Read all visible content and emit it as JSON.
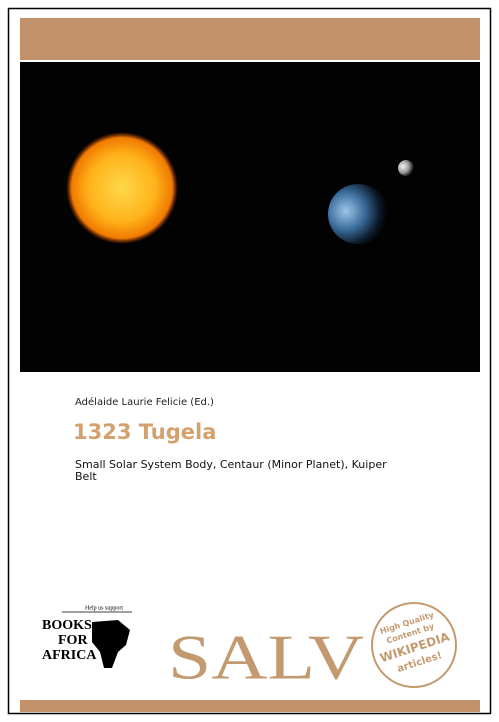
{
  "cover": {
    "author": "Adélaide Laurie Felicie (Ed.)",
    "title": "1323 Tugela",
    "subtitle_lines": [
      "Small Solar System Body, Centaur (Minor Planet), Kuiper",
      "Belt"
    ],
    "books_for_africa": {
      "tagline": "Help us support",
      "lines": [
        "BOOKS",
        "FOR",
        "AFRICA"
      ]
    },
    "publisher": "SALV",
    "badge": [
      "High Quality",
      "Content by",
      "WIKIPEDIA",
      "articles!"
    ]
  }
}
